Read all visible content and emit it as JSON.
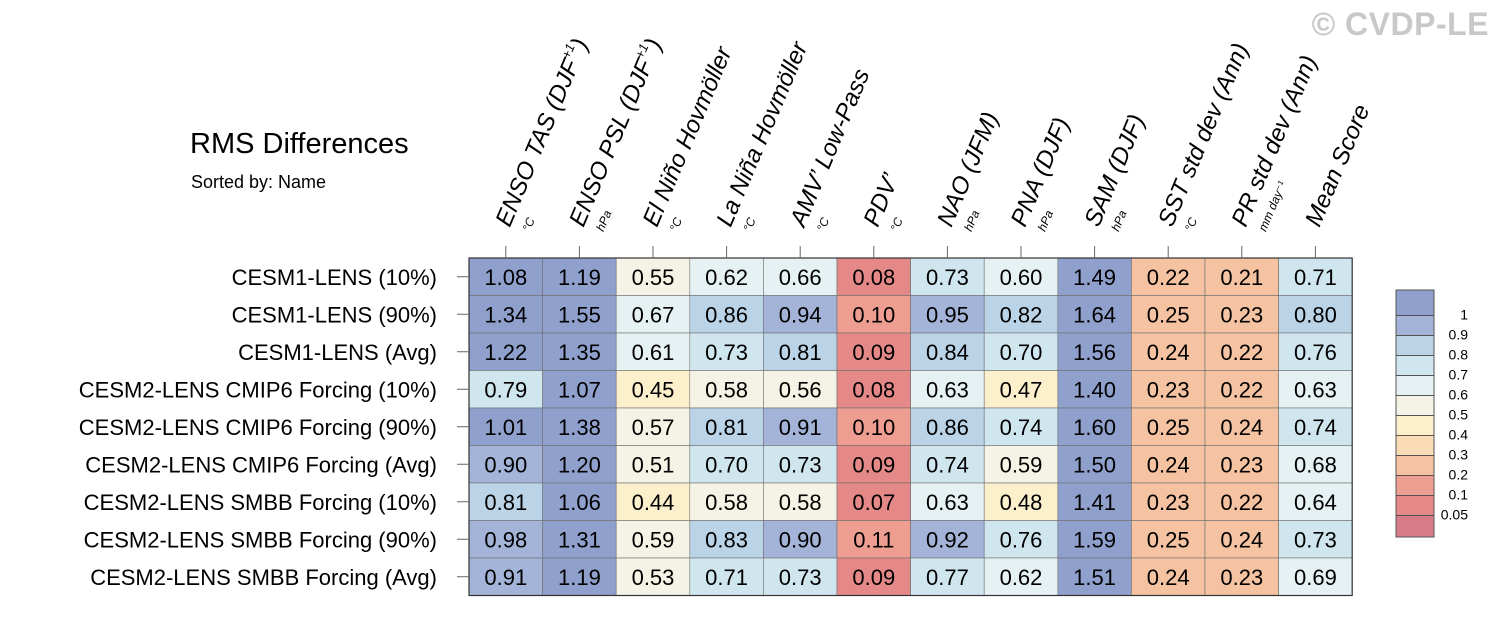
{
  "title": "RMS Differences",
  "subtitle": "Sorted by: Name",
  "watermark": "© CVDP-LE",
  "chart_data": {
    "type": "heatmap",
    "columns": [
      {
        "name": "ENSO TAS (DJF",
        "sup": "+1",
        "close": ")",
        "unit": "°C"
      },
      {
        "name": "ENSO PSL (DJF",
        "sup": "+1",
        "close": ")",
        "unit": "hPa"
      },
      {
        "name": "El Niño Hovmöller",
        "sup": "",
        "close": "",
        "unit": "°C"
      },
      {
        "name": "La Niña Hovmöller",
        "sup": "",
        "close": "",
        "unit": "°C"
      },
      {
        "name": "AMV’ Low-Pass",
        "sup": "",
        "close": "",
        "unit": "°C"
      },
      {
        "name": "PDV’",
        "sup": "",
        "close": "",
        "unit": "°C"
      },
      {
        "name": "NAO (JFM)",
        "sup": "",
        "close": "",
        "unit": "hPa"
      },
      {
        "name": "PNA (DJF)",
        "sup": "",
        "close": "",
        "unit": "hPa"
      },
      {
        "name": "SAM (DJF)",
        "sup": "",
        "close": "",
        "unit": "hPa"
      },
      {
        "name": "SST std dev (Ann)",
        "sup": "",
        "close": "",
        "unit": "°C"
      },
      {
        "name": "PR std dev (Ann)",
        "sup": "",
        "close": "",
        "unit": "mm day⁻¹"
      },
      {
        "name": "Mean Score",
        "sup": "",
        "close": "",
        "unit": ""
      }
    ],
    "rows": [
      "CESM1-LENS (10%)",
      "CESM1-LENS (90%)",
      "CESM1-LENS (Avg)",
      "CESM2-LENS CMIP6 Forcing (10%)",
      "CESM2-LENS CMIP6 Forcing (90%)",
      "CESM2-LENS CMIP6 Forcing (Avg)",
      "CESM2-LENS SMBB Forcing (10%)",
      "CESM2-LENS SMBB Forcing (90%)",
      "CESM2-LENS SMBB Forcing (Avg)"
    ],
    "values": [
      [
        "1.08",
        "1.19",
        "0.55",
        "0.62",
        "0.66",
        "0.08",
        "0.73",
        "0.60",
        "1.49",
        "0.22",
        "0.21",
        "0.71"
      ],
      [
        "1.34",
        "1.55",
        "0.67",
        "0.86",
        "0.94",
        "0.10",
        "0.95",
        "0.82",
        "1.64",
        "0.25",
        "0.23",
        "0.80"
      ],
      [
        "1.22",
        "1.35",
        "0.61",
        "0.73",
        "0.81",
        "0.09",
        "0.84",
        "0.70",
        "1.56",
        "0.24",
        "0.22",
        "0.76"
      ],
      [
        "0.79",
        "1.07",
        "0.45",
        "0.58",
        "0.56",
        "0.08",
        "0.63",
        "0.47",
        "1.40",
        "0.23",
        "0.22",
        "0.63"
      ],
      [
        "1.01",
        "1.38",
        "0.57",
        "0.81",
        "0.91",
        "0.10",
        "0.86",
        "0.74",
        "1.60",
        "0.25",
        "0.24",
        "0.74"
      ],
      [
        "0.90",
        "1.20",
        "0.51",
        "0.70",
        "0.73",
        "0.09",
        "0.74",
        "0.59",
        "1.50",
        "0.24",
        "0.23",
        "0.68"
      ],
      [
        "0.81",
        "1.06",
        "0.44",
        "0.58",
        "0.58",
        "0.07",
        "0.63",
        "0.48",
        "1.41",
        "0.23",
        "0.22",
        "0.64"
      ],
      [
        "0.98",
        "1.31",
        "0.59",
        "0.83",
        "0.90",
        "0.11",
        "0.92",
        "0.76",
        "1.59",
        "0.25",
        "0.24",
        "0.73"
      ],
      [
        "0.91",
        "1.19",
        "0.53",
        "0.71",
        "0.73",
        "0.09",
        "0.77",
        "0.62",
        "1.51",
        "0.24",
        "0.23",
        "0.69"
      ]
    ],
    "colorbar": {
      "levels": [
        "1",
        "0.9",
        "0.8",
        "0.7",
        "0.6",
        "0.5",
        "0.4",
        "0.3",
        "0.2",
        "0.1",
        "0.05"
      ],
      "bins": [
        {
          "min": 1.0,
          "color": "#8fa0cc"
        },
        {
          "min": 0.9,
          "color": "#a3b4d8"
        },
        {
          "min": 0.8,
          "color": "#bbd3e6"
        },
        {
          "min": 0.7,
          "color": "#d0e6ef"
        },
        {
          "min": 0.6,
          "color": "#e6f1f3"
        },
        {
          "min": 0.5,
          "color": "#f4f3e5"
        },
        {
          "min": 0.4,
          "color": "#fbefcc"
        },
        {
          "min": 0.3,
          "color": "#f9dcb6"
        },
        {
          "min": 0.2,
          "color": "#f5c3a1"
        },
        {
          "min": 0.1,
          "color": "#ee9e90"
        },
        {
          "min": 0.05,
          "color": "#e58888"
        },
        {
          "min": 0.0,
          "color": "#d87c8a"
        }
      ]
    }
  }
}
